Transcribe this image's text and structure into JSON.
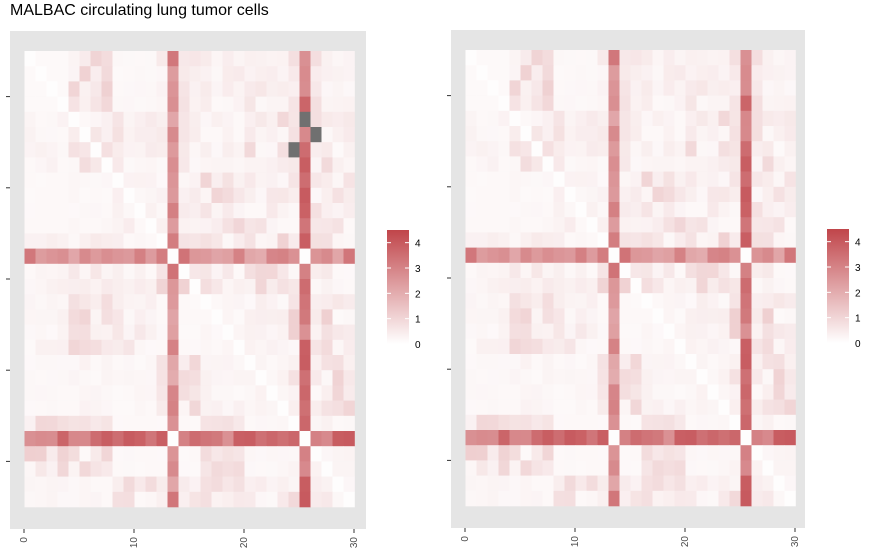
{
  "title": "MALBAC circulating lung tumor cells",
  "colors": {
    "panel_bg": "#e5e5e5",
    "grid": "#ffffff",
    "low": "#ffffff",
    "high": "#c0454a",
    "na": "#707070",
    "tick_text": "#4d4d4d"
  },
  "chart_data": [
    {
      "type": "heatmap",
      "title": "MALBAC circulating lung tumor cells",
      "xlabel": "",
      "ylabel": "",
      "x_range": [
        0,
        30
      ],
      "x_ticks": [
        0,
        10,
        20,
        30
      ],
      "x_tick_labels": [
        "0",
        "10",
        "20",
        "30"
      ],
      "y_tick_labels_shown": false,
      "grid": true,
      "cells_per_side": 30,
      "hot_indices": [
        13,
        25
      ],
      "missing_cells": [
        [
          25,
          4
        ],
        [
          26,
          5
        ],
        [
          24,
          6
        ]
      ],
      "legend": {
        "position": "right",
        "min": 0,
        "max": 4.5,
        "breaks": [
          0,
          1,
          2,
          3,
          4
        ],
        "labels": [
          "0",
          "1",
          "2",
          "3",
          "4"
        ]
      }
    },
    {
      "type": "heatmap",
      "title": "",
      "xlabel": "",
      "ylabel": "",
      "x_range": [
        0,
        30
      ],
      "x_ticks": [
        0,
        10,
        20,
        30
      ],
      "x_tick_labels": [
        "0",
        "10",
        "20",
        "30"
      ],
      "y_tick_labels_shown": false,
      "grid": true,
      "cells_per_side": 30,
      "hot_indices": [
        13,
        25
      ],
      "missing_cells": [],
      "legend": {
        "position": "right",
        "min": 0,
        "max": 4.5,
        "breaks": [
          0,
          1,
          2,
          3,
          4
        ],
        "labels": [
          "0",
          "1",
          "2",
          "3",
          "4"
        ]
      }
    }
  ]
}
